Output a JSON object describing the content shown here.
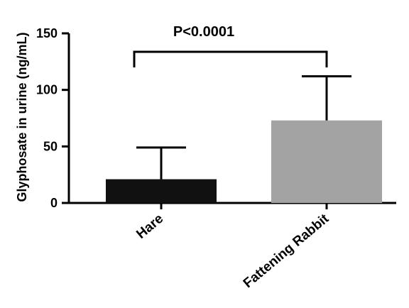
{
  "chart_data": {
    "type": "bar",
    "categories": [
      "Hare",
      "Fattening Rabbit"
    ],
    "values": [
      21,
      73
    ],
    "errors_upper": [
      49,
      112
    ],
    "colors": [
      "#111111",
      "#a3a3a3"
    ],
    "ylabel": "Glyphosate in urine (ng/mL)",
    "xlabel": "",
    "ylim": [
      0,
      150
    ],
    "yticks": [
      0,
      50,
      100,
      150
    ],
    "grid": false,
    "annotation": {
      "text": "P<0.0001",
      "between": [
        "Hare",
        "Fattening Rabbit"
      ]
    }
  }
}
